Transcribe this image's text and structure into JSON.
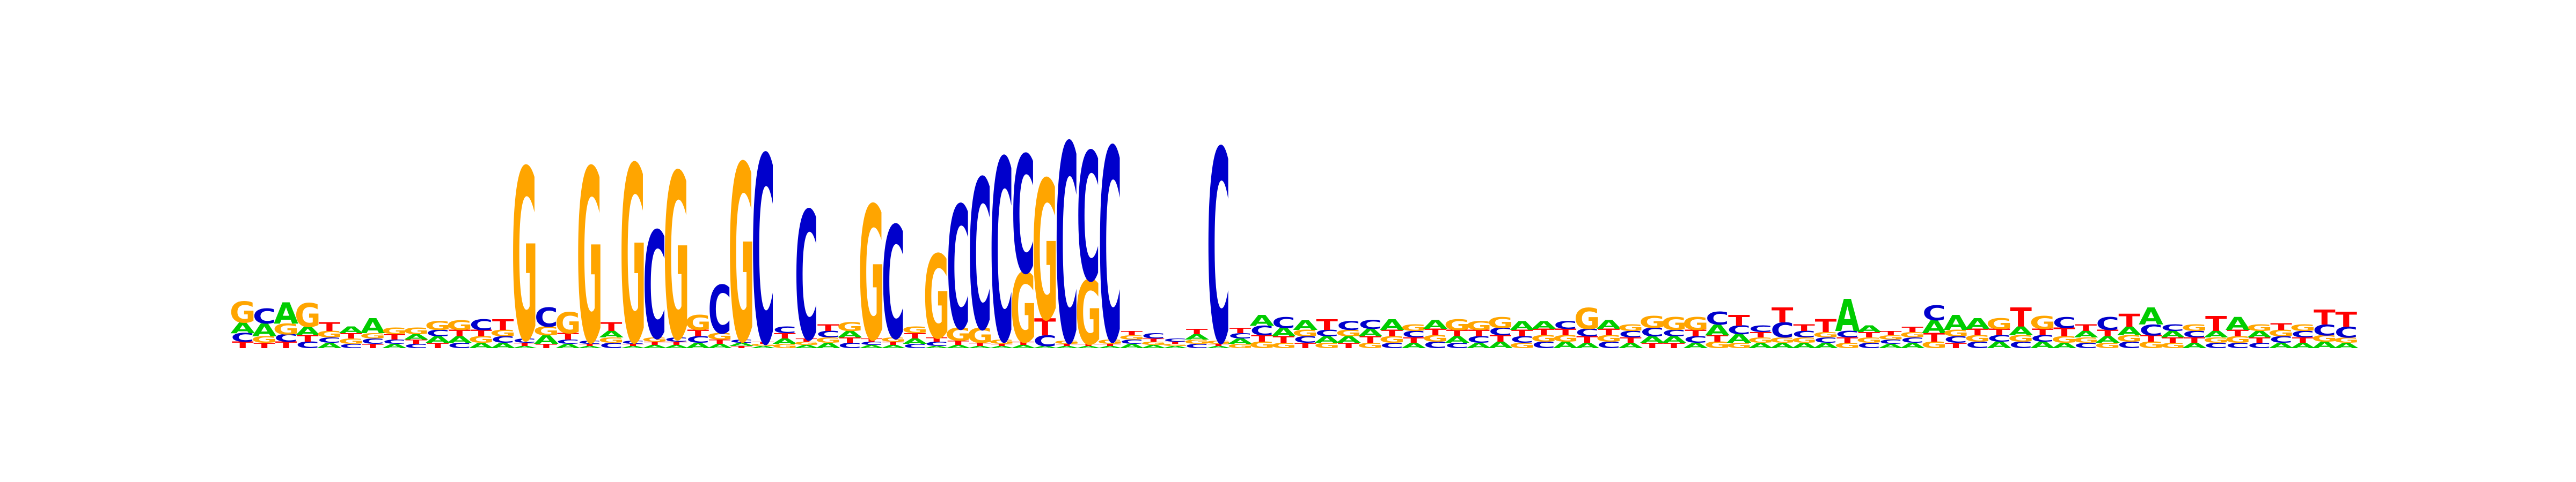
{
  "colors": {
    "A": "#00cc00",
    "C": "#0000cc",
    "G": "#ffa500",
    "T": "#ff0000"
  },
  "chart_data": {
    "type": "sequence-logo",
    "alphabet": [
      "A",
      "C",
      "G",
      "T"
    ],
    "axes_visible": false,
    "positions": [
      {
        "A": 0.1,
        "C": 0.08,
        "G": 0.2,
        "T": 0.06
      },
      {
        "A": 0.12,
        "C": 0.14,
        "G": 0.06,
        "T": 0.05
      },
      {
        "A": 0.2,
        "C": 0.07,
        "G": 0.1,
        "T": 0.06
      },
      {
        "A": 0.08,
        "C": 0.06,
        "G": 0.22,
        "T": 0.06
      },
      {
        "A": 0.05,
        "C": 0.05,
        "G": 0.06,
        "T": 0.08
      },
      {
        "A": 0.06,
        "C": 0.04,
        "G": 0.05,
        "T": 0.05
      },
      {
        "A": 0.14,
        "C": 0.05,
        "G": 0.05,
        "T": 0.04
      },
      {
        "A": 0.04,
        "C": 0.04,
        "G": 0.06,
        "T": 0.05
      },
      {
        "A": 0.05,
        "C": 0.04,
        "G": 0.06,
        "T": 0.04
      },
      {
        "A": 0.06,
        "C": 0.06,
        "G": 0.08,
        "T": 0.05
      },
      {
        "A": 0.06,
        "C": 0.05,
        "G": 0.09,
        "T": 0.06
      },
      {
        "A": 0.05,
        "C": 0.1,
        "G": 0.06,
        "T": 0.06
      },
      {
        "A": 0.05,
        "C": 0.06,
        "G": 0.06,
        "T": 0.1
      },
      {
        "A": 0.02,
        "C": 0.04,
        "G": 1.6,
        "T": 0.03
      },
      {
        "A": 0.08,
        "C": 0.18,
        "G": 0.08,
        "T": 0.04
      },
      {
        "A": 0.04,
        "C": 0.04,
        "G": 0.2,
        "T": 0.06
      },
      {
        "A": 0.02,
        "C": 0.03,
        "G": 1.62,
        "T": 0.02
      },
      {
        "A": 0.06,
        "C": 0.05,
        "G": 0.05,
        "T": 0.08
      },
      {
        "A": 0.02,
        "C": 0.03,
        "G": 1.65,
        "T": 0.02
      },
      {
        "A": 0.03,
        "C": 1.0,
        "G": 0.04,
        "T": 0.03
      },
      {
        "A": 0.03,
        "C": 0.04,
        "G": 1.55,
        "T": 0.03
      },
      {
        "A": 0.05,
        "C": 0.06,
        "G": 0.14,
        "T": 0.06
      },
      {
        "A": 0.04,
        "C": 0.45,
        "G": 0.06,
        "T": 0.04
      },
      {
        "A": 0.03,
        "C": 0.03,
        "G": 1.65,
        "T": 0.02
      },
      {
        "A": 0.02,
        "C": 1.75,
        "G": 0.02,
        "T": 0.02
      },
      {
        "A": 0.05,
        "C": 0.06,
        "G": 0.04,
        "T": 0.05
      },
      {
        "A": 0.03,
        "C": 1.2,
        "G": 0.03,
        "T": 0.03
      },
      {
        "A": 0.05,
        "C": 0.06,
        "G": 0.05,
        "T": 0.06
      },
      {
        "A": 0.06,
        "C": 0.05,
        "G": 0.08,
        "T": 0.05
      },
      {
        "A": 0.03,
        "C": 0.03,
        "G": 1.25,
        "T": 0.03
      },
      {
        "A": 0.03,
        "C": 1.05,
        "G": 0.04,
        "T": 0.03
      },
      {
        "A": 0.05,
        "C": 0.04,
        "G": 0.06,
        "T": 0.05
      },
      {
        "A": 0.02,
        "C": 0.04,
        "G": 0.78,
        "T": 0.04
      },
      {
        "A": 0.03,
        "C": 1.15,
        "G": 0.12,
        "T": 0.04
      },
      {
        "A": 0.02,
        "C": 1.4,
        "G": 0.14,
        "T": 0.03
      },
      {
        "A": 0.02,
        "C": 1.7,
        "G": 0.04,
        "T": 0.02
      },
      {
        "A": 0.03,
        "C": 1.1,
        "G": 0.65,
        "T": 0.03
      },
      {
        "A": 0.02,
        "C": 0.1,
        "G": 1.3,
        "T": 0.16
      },
      {
        "A": 0.02,
        "C": 1.85,
        "G": 0.03,
        "T": 0.02
      },
      {
        "A": 0.02,
        "C": 1.2,
        "G": 0.6,
        "T": 0.02
      },
      {
        "A": 0.02,
        "C": 1.8,
        "G": 0.04,
        "T": 0.02
      },
      {
        "A": 0.04,
        "C": 0.04,
        "G": 0.04,
        "T": 0.04
      },
      {
        "A": 0.03,
        "C": 0.05,
        "G": 0.03,
        "T": 0.03
      },
      {
        "A": 0.02,
        "C": 0.03,
        "G": 0.02,
        "T": 0.02
      },
      {
        "A": 0.05,
        "C": 0.04,
        "G": 0.04,
        "T": 0.05
      },
      {
        "A": 0.02,
        "C": 1.8,
        "G": 0.03,
        "T": 0.02
      },
      {
        "A": 0.05,
        "C": 0.05,
        "G": 0.04,
        "T": 0.05
      },
      {
        "A": 0.1,
        "C": 0.09,
        "G": 0.06,
        "T": 0.06
      },
      {
        "A": 0.08,
        "C": 0.1,
        "G": 0.05,
        "T": 0.06
      },
      {
        "A": 0.09,
        "C": 0.06,
        "G": 0.06,
        "T": 0.05
      },
      {
        "A": 0.06,
        "C": 0.06,
        "G": 0.05,
        "T": 0.1
      },
      {
        "A": 0.06,
        "C": 0.08,
        "G": 0.06,
        "T": 0.05
      },
      {
        "A": 0.07,
        "C": 0.08,
        "G": 0.05,
        "T": 0.06
      },
      {
        "A": 0.1,
        "C": 0.05,
        "G": 0.06,
        "T": 0.06
      },
      {
        "A": 0.05,
        "C": 0.06,
        "G": 0.06,
        "T": 0.05
      },
      {
        "A": 0.08,
        "C": 0.06,
        "G": 0.06,
        "T": 0.06
      },
      {
        "A": 0.06,
        "C": 0.05,
        "G": 0.1,
        "T": 0.06
      },
      {
        "A": 0.05,
        "C": 0.06,
        "G": 0.08,
        "T": 0.06
      },
      {
        "A": 0.06,
        "C": 0.07,
        "G": 0.1,
        "T": 0.06
      },
      {
        "A": 0.08,
        "C": 0.06,
        "G": 0.05,
        "T": 0.06
      },
      {
        "A": 0.07,
        "C": 0.06,
        "G": 0.06,
        "T": 0.06
      },
      {
        "A": 0.06,
        "C": 0.07,
        "G": 0.06,
        "T": 0.06
      },
      {
        "A": 0.05,
        "C": 0.07,
        "G": 0.2,
        "T": 0.06
      },
      {
        "A": 0.08,
        "C": 0.06,
        "G": 0.06,
        "T": 0.06
      },
      {
        "A": 0.05,
        "C": 0.06,
        "G": 0.06,
        "T": 0.05
      },
      {
        "A": 0.06,
        "C": 0.08,
        "G": 0.11,
        "T": 0.05
      },
      {
        "A": 0.06,
        "C": 0.06,
        "G": 0.12,
        "T": 0.05
      },
      {
        "A": 0.05,
        "C": 0.06,
        "G": 0.12,
        "T": 0.06
      },
      {
        "A": 0.1,
        "C": 0.12,
        "G": 0.06,
        "T": 0.06
      },
      {
        "A": 0.08,
        "C": 0.08,
        "G": 0.05,
        "T": 0.1
      },
      {
        "A": 0.05,
        "C": 0.06,
        "G": 0.05,
        "T": 0.05
      },
      {
        "A": 0.05,
        "C": 0.14,
        "G": 0.05,
        "T": 0.14
      },
      {
        "A": 0.05,
        "C": 0.06,
        "G": 0.05,
        "T": 0.06
      },
      {
        "A": 0.05,
        "C": 0.05,
        "G": 0.05,
        "T": 0.12
      },
      {
        "A": 0.3,
        "C": 0.06,
        "G": 0.05,
        "T": 0.05
      },
      {
        "A": 0.06,
        "C": 0.05,
        "G": 0.05,
        "T": 0.05
      },
      {
        "A": 0.04,
        "C": 0.04,
        "G": 0.04,
        "T": 0.04
      },
      {
        "A": 0.05,
        "C": 0.05,
        "G": 0.05,
        "T": 0.05
      },
      {
        "A": 0.12,
        "C": 0.14,
        "G": 0.06,
        "T": 0.08
      },
      {
        "A": 0.14,
        "C": 0.06,
        "G": 0.06,
        "T": 0.05
      },
      {
        "A": 0.1,
        "C": 0.06,
        "G": 0.06,
        "T": 0.06
      },
      {
        "A": 0.06,
        "C": 0.06,
        "G": 0.1,
        "T": 0.06
      },
      {
        "A": 0.08,
        "C": 0.06,
        "G": 0.06,
        "T": 0.18
      },
      {
        "A": 0.06,
        "C": 0.06,
        "G": 0.12,
        "T": 0.06
      },
      {
        "A": 0.05,
        "C": 0.1,
        "G": 0.06,
        "T": 0.08
      },
      {
        "A": 0.06,
        "C": 0.05,
        "G": 0.05,
        "T": 0.06
      },
      {
        "A": 0.06,
        "C": 0.12,
        "G": 0.05,
        "T": 0.06
      },
      {
        "A": 0.08,
        "C": 0.06,
        "G": 0.06,
        "T": 0.12
      },
      {
        "A": 0.16,
        "C": 0.1,
        "G": 0.06,
        "T": 0.06
      },
      {
        "A": 0.06,
        "C": 0.06,
        "G": 0.05,
        "T": 0.05
      },
      {
        "A": 0.05,
        "C": 0.06,
        "G": 0.06,
        "T": 0.05
      },
      {
        "A": 0.06,
        "C": 0.05,
        "G": 0.05,
        "T": 0.14
      },
      {
        "A": 0.12,
        "C": 0.05,
        "G": 0.06,
        "T": 0.06
      },
      {
        "A": 0.06,
        "C": 0.05,
        "G": 0.06,
        "T": 0.05
      },
      {
        "A": 0.05,
        "C": 0.06,
        "G": 0.06,
        "T": 0.06
      },
      {
        "A": 0.05,
        "C": 0.06,
        "G": 0.06,
        "T": 0.05
      },
      {
        "A": 0.06,
        "C": 0.1,
        "G": 0.06,
        "T": 0.14
      },
      {
        "A": 0.05,
        "C": 0.1,
        "G": 0.05,
        "T": 0.14
      }
    ]
  }
}
